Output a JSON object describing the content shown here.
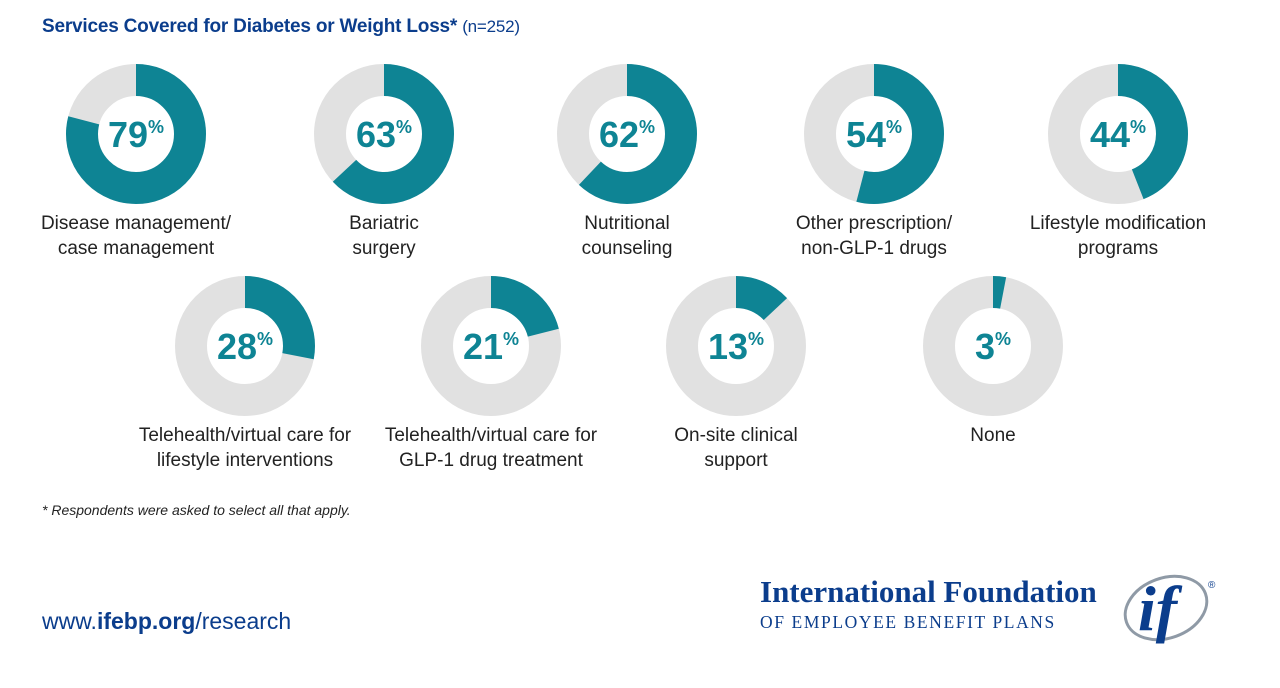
{
  "header": {
    "title": "Services Covered for Diabetes or Weight Loss*",
    "sample": "(n=252)"
  },
  "chart_data": {
    "type": "pie",
    "variant": "donut",
    "title": "Services Covered for Diabetes or Weight Loss*",
    "subtitle": "(n=252)",
    "unit": "%",
    "items": [
      {
        "value": 79,
        "label_lines": [
          "Disease management/",
          "case management"
        ]
      },
      {
        "value": 63,
        "label_lines": [
          "Bariatric",
          "surgery"
        ]
      },
      {
        "value": 62,
        "label_lines": [
          "Nutritional",
          "counseling"
        ]
      },
      {
        "value": 54,
        "label_lines": [
          "Other prescription/",
          "non-GLP-1 drugs"
        ]
      },
      {
        "value": 44,
        "label_lines": [
          "Lifestyle modification",
          "programs"
        ]
      },
      {
        "value": 28,
        "label_lines": [
          "Telehealth/virtual care for",
          "lifestyle interventions"
        ]
      },
      {
        "value": 21,
        "label_lines": [
          "Telehealth/virtual care for",
          "GLP-1 drug treatment"
        ]
      },
      {
        "value": 13,
        "label_lines": [
          "On-site clinical",
          "support"
        ]
      },
      {
        "value": 3,
        "label_lines": [
          "None"
        ]
      }
    ],
    "colors": {
      "filled": "#0e8494",
      "remainder": "#e1e1e1"
    }
  },
  "footnote": "* Respondents were asked to select all that apply.",
  "footer": {
    "url_prefix": "www.",
    "url_domain": "ifebp.org",
    "url_path": "/research"
  },
  "logo": {
    "line1": "International Foundation",
    "line2": "OF EMPLOYEE BENEFIT PLANS",
    "mark": "if",
    "registered": "®"
  }
}
